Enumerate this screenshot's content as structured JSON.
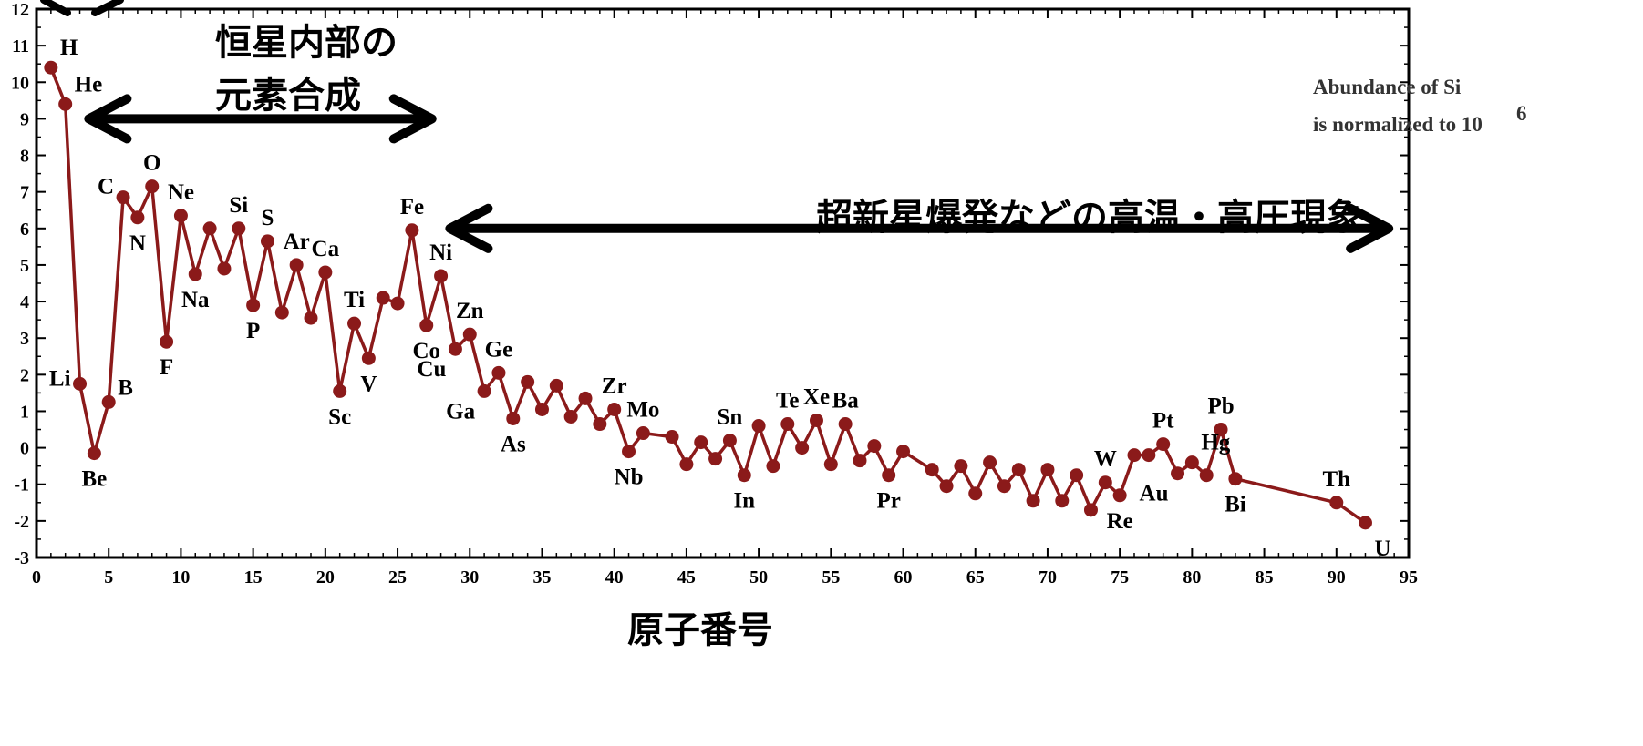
{
  "chart_data": {
    "type": "line",
    "xlabel": "原子番号",
    "ylabel": "",
    "xlim": [
      0,
      95
    ],
    "ylim": [
      -3,
      12
    ],
    "xticks": [
      0,
      5,
      10,
      15,
      20,
      25,
      30,
      35,
      40,
      45,
      50,
      55,
      60,
      65,
      70,
      75,
      80,
      85,
      90,
      95
    ],
    "yticks": [
      -3,
      -2,
      -1,
      0,
      1,
      2,
      3,
      4,
      5,
      6,
      7,
      8,
      9,
      10,
      11,
      12
    ],
    "grid": false,
    "line_color": "#8b1a1a",
    "points": [
      {
        "x": 1,
        "y": 10.4,
        "label": "H"
      },
      {
        "x": 2,
        "y": 9.4,
        "label": "He"
      },
      {
        "x": 3,
        "y": 1.75,
        "label": "Li"
      },
      {
        "x": 4,
        "y": -0.15,
        "label": "Be"
      },
      {
        "x": 5,
        "y": 1.25,
        "label": "B"
      },
      {
        "x": 6,
        "y": 6.85,
        "label": "C"
      },
      {
        "x": 7,
        "y": 6.3,
        "label": "N"
      },
      {
        "x": 8,
        "y": 7.15,
        "label": "O"
      },
      {
        "x": 9,
        "y": 2.9,
        "label": "F"
      },
      {
        "x": 10,
        "y": 6.35,
        "label": "Ne"
      },
      {
        "x": 11,
        "y": 4.75,
        "label": "Na"
      },
      {
        "x": 12,
        "y": 6.0,
        "label": ""
      },
      {
        "x": 13,
        "y": 4.9,
        "label": ""
      },
      {
        "x": 14,
        "y": 6.0,
        "label": "Si"
      },
      {
        "x": 15,
        "y": 3.9,
        "label": "P"
      },
      {
        "x": 16,
        "y": 5.65,
        "label": "S"
      },
      {
        "x": 17,
        "y": 3.7,
        "label": ""
      },
      {
        "x": 18,
        "y": 5.0,
        "label": "Ar"
      },
      {
        "x": 19,
        "y": 3.55,
        "label": ""
      },
      {
        "x": 20,
        "y": 4.8,
        "label": "Ca"
      },
      {
        "x": 21,
        "y": 1.55,
        "label": "Sc"
      },
      {
        "x": 22,
        "y": 3.4,
        "label": "Ti"
      },
      {
        "x": 23,
        "y": 2.45,
        "label": "V"
      },
      {
        "x": 24,
        "y": 4.1,
        "label": ""
      },
      {
        "x": 25,
        "y": 3.95,
        "label": ""
      },
      {
        "x": 26,
        "y": 5.95,
        "label": "Fe"
      },
      {
        "x": 27,
        "y": 3.35,
        "label": "Co"
      },
      {
        "x": 28,
        "y": 4.7,
        "label": "Ni"
      },
      {
        "x": 29,
        "y": 2.7,
        "label": "Cu"
      },
      {
        "x": 30,
        "y": 3.1,
        "label": "Zn"
      },
      {
        "x": 31,
        "y": 1.55,
        "label": "Ga"
      },
      {
        "x": 32,
        "y": 2.05,
        "label": "Ge"
      },
      {
        "x": 33,
        "y": 0.8,
        "label": "As"
      },
      {
        "x": 34,
        "y": 1.8,
        "label": ""
      },
      {
        "x": 35,
        "y": 1.05,
        "label": ""
      },
      {
        "x": 36,
        "y": 1.7,
        "label": ""
      },
      {
        "x": 37,
        "y": 0.85,
        "label": ""
      },
      {
        "x": 38,
        "y": 1.35,
        "label": ""
      },
      {
        "x": 39,
        "y": 0.65,
        "label": ""
      },
      {
        "x": 40,
        "y": 1.05,
        "label": "Zr"
      },
      {
        "x": 41,
        "y": -0.1,
        "label": "Nb"
      },
      {
        "x": 42,
        "y": 0.4,
        "label": "Mo"
      },
      {
        "x": 44,
        "y": 0.3,
        "label": ""
      },
      {
        "x": 45,
        "y": -0.45,
        "label": ""
      },
      {
        "x": 46,
        "y": 0.15,
        "label": ""
      },
      {
        "x": 47,
        "y": -0.3,
        "label": ""
      },
      {
        "x": 48,
        "y": 0.2,
        "label": "Sn"
      },
      {
        "x": 49,
        "y": -0.75,
        "label": "In"
      },
      {
        "x": 50,
        "y": 0.6,
        "label": ""
      },
      {
        "x": 51,
        "y": -0.5,
        "label": ""
      },
      {
        "x": 52,
        "y": 0.65,
        "label": "Te"
      },
      {
        "x": 53,
        "y": 0.0,
        "label": ""
      },
      {
        "x": 54,
        "y": 0.75,
        "label": "Xe"
      },
      {
        "x": 55,
        "y": -0.45,
        "label": ""
      },
      {
        "x": 56,
        "y": 0.65,
        "label": "Ba"
      },
      {
        "x": 57,
        "y": -0.35,
        "label": ""
      },
      {
        "x": 58,
        "y": 0.05,
        "label": ""
      },
      {
        "x": 59,
        "y": -0.75,
        "label": "Pr"
      },
      {
        "x": 60,
        "y": -0.1,
        "label": ""
      },
      {
        "x": 62,
        "y": -0.6,
        "label": ""
      },
      {
        "x": 63,
        "y": -1.05,
        "label": ""
      },
      {
        "x": 64,
        "y": -0.5,
        "label": ""
      },
      {
        "x": 65,
        "y": -1.25,
        "label": ""
      },
      {
        "x": 66,
        "y": -0.4,
        "label": ""
      },
      {
        "x": 67,
        "y": -1.05,
        "label": ""
      },
      {
        "x": 68,
        "y": -0.6,
        "label": ""
      },
      {
        "x": 69,
        "y": -1.45,
        "label": ""
      },
      {
        "x": 70,
        "y": -0.6,
        "label": ""
      },
      {
        "x": 71,
        "y": -1.45,
        "label": ""
      },
      {
        "x": 72,
        "y": -0.75,
        "label": ""
      },
      {
        "x": 73,
        "y": -1.7,
        "label": ""
      },
      {
        "x": 74,
        "y": -0.95,
        "label": "W"
      },
      {
        "x": 75,
        "y": -1.3,
        "label": "Re"
      },
      {
        "x": 76,
        "y": -0.2,
        "label": ""
      },
      {
        "x": 77,
        "y": -0.2,
        "label": ""
      },
      {
        "x": 78,
        "y": 0.1,
        "label": "Pt"
      },
      {
        "x": 79,
        "y": -0.7,
        "label": "Au"
      },
      {
        "x": 80,
        "y": -0.4,
        "label": "Hg"
      },
      {
        "x": 81,
        "y": -0.75,
        "label": ""
      },
      {
        "x": 82,
        "y": 0.5,
        "label": "Pb"
      },
      {
        "x": 83,
        "y": -0.85,
        "label": "Bi"
      },
      {
        "x": 90,
        "y": -1.5,
        "label": "Th"
      },
      {
        "x": 92,
        "y": -2.05,
        "label": "U"
      }
    ],
    "annotations": [
      {
        "lines": [
          "恒星内部の",
          "元素合成"
        ],
        "arrow_from": 4,
        "arrow_to": 27,
        "arrow_y": 9
      },
      {
        "lines": [
          "超新星爆発などの高温・高圧現象"
        ],
        "arrow_from": 29,
        "arrow_to": 94,
        "arrow_y": 6
      },
      {
        "lines": [
          "Abundance of Si",
          "is normalized to 10"
        ],
        "superscript": "6"
      }
    ]
  }
}
